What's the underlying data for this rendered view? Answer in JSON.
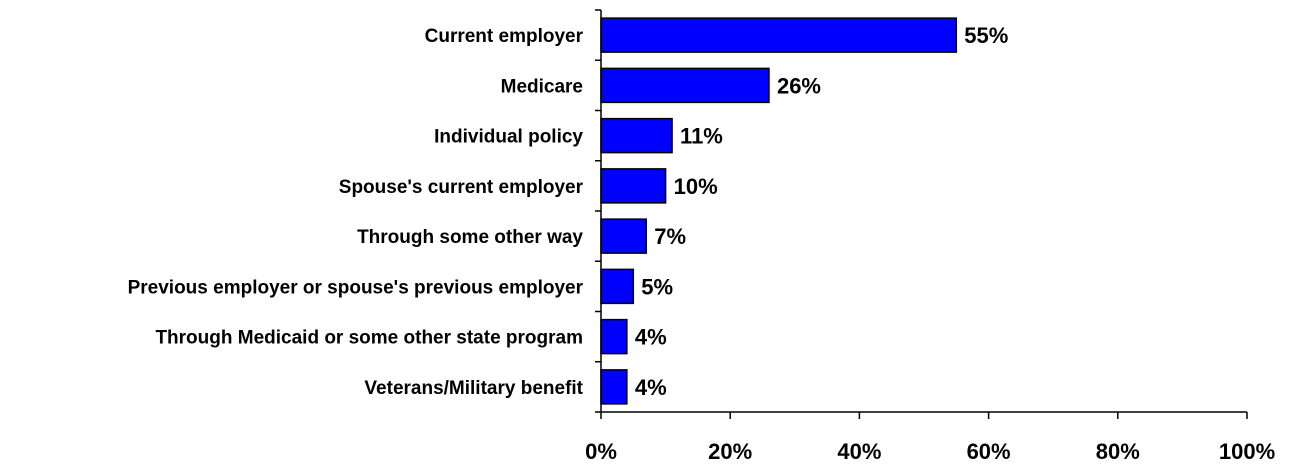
{
  "chart_data": {
    "type": "bar",
    "orientation": "horizontal",
    "categories": [
      "Current employer",
      "Medicare",
      "Individual policy",
      "Spouse's current employer",
      "Through some other way",
      "Previous employer or spouse's previous employer",
      "Through Medicaid or some other state program",
      "Veterans/Military benefit"
    ],
    "values": [
      55,
      26,
      11,
      10,
      7,
      5,
      4,
      4
    ],
    "value_labels": [
      "55%",
      "26%",
      "11%",
      "10%",
      "7%",
      "5%",
      "4%",
      "4%"
    ],
    "xlim": [
      0,
      100
    ],
    "xticks": [
      0,
      20,
      40,
      60,
      80,
      100
    ],
    "xtick_labels": [
      "0%",
      "20%",
      "40%",
      "60%",
      "80%",
      "100%"
    ],
    "title": "",
    "xlabel": "",
    "ylabel": "",
    "grid": false,
    "legend": "none",
    "bar_color": "#0000FF",
    "bar_edge_color": "#000000"
  }
}
